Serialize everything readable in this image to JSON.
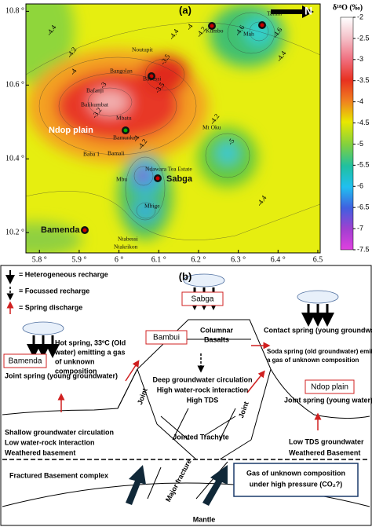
{
  "panel_a": {
    "label": "(a)",
    "north": "N",
    "colorbar_title": "δ¹⁸O (‰)",
    "xlim": [
      5.766,
      6.506
    ],
    "ylim": [
      10.145,
      10.82
    ],
    "x_ticks": [
      {
        "value": 5.8,
        "label": "5.8 °"
      },
      {
        "value": 5.9,
        "label": "5.9 °"
      },
      {
        "value": 6,
        "label": "6 °"
      },
      {
        "value": 6.1,
        "label": "6.1 °"
      },
      {
        "value": 6.2,
        "label": "6.2 °"
      },
      {
        "value": 6.3,
        "label": "6.3 °"
      },
      {
        "value": 6.4,
        "label": "6.4 °"
      },
      {
        "value": 6.5,
        "label": "6.5"
      }
    ],
    "y_ticks": [
      {
        "value": 10.8,
        "label": "10.8 °"
      },
      {
        "value": 10.6,
        "label": "10.6 °"
      },
      {
        "value": 10.4,
        "label": "10.4 °"
      },
      {
        "value": 10.2,
        "label": "10.2 °"
      }
    ],
    "colorbar_ticks": [
      -2,
      -2.5,
      -3,
      -3.5,
      -4,
      -4.5,
      -5,
      -5.5,
      -6,
      -6.5,
      -7,
      -7.5
    ],
    "sites": [
      "Tatum",
      "Mah",
      "Kumbo",
      "Noutupit",
      "Bangolan",
      "Babessi",
      "Bafanji",
      "Balikumbat",
      "Mbatu",
      "Ndop plain",
      "Bamunka",
      "Mt Oku",
      "Baba 1",
      "Bamali",
      "Ndawara Tea Estate",
      "Sabga",
      "Mbu",
      "Mbige",
      "Bamenda",
      "Ntabessi",
      "Ntakrikon"
    ],
    "contour_labels": [
      "-4.4",
      "-4.2",
      "-4",
      "-3.5",
      "-3.5",
      "-3.2",
      "-3",
      "-4",
      "-4.2",
      "-4.4",
      "-4.6",
      "-4.6",
      "-4.4",
      "-4.2",
      "-5",
      "-4",
      "-4.2",
      "-4.4"
    ]
  },
  "panel_b": {
    "label": "(b)",
    "legend": [
      "= Heterogeneous recharge",
      "= Focussed recharge",
      "= Spring discharge"
    ],
    "boxes": [
      "Sabga",
      "Bambui",
      "Bamenda",
      "Ndop plain"
    ],
    "texts": {
      "columnar": [
        "Columnar",
        "Basalts"
      ],
      "contact": [
        "Contact spring (young groundwater)"
      ],
      "soda": [
        "Soda spring (old groundwater) emitting",
        "a gas of unknown composition"
      ],
      "hot": [
        "Hot spring, 33ºC (Old",
        "water) emitting a gas",
        "of          unknown",
        "composition"
      ],
      "joint_bamenda": [
        "Joint spring (young groundwater)"
      ],
      "deep": [
        "Deep groundwater circulation",
        "High water-rock interaction",
        "High TDS"
      ],
      "joint1": [
        "Joint"
      ],
      "joint2": [
        "Joint"
      ],
      "joint_ndop": [
        "Joint spring (young water)"
      ],
      "low_tds": [
        "Low TDS groundwater",
        "Weathered Basement"
      ],
      "shallow": [
        "Shallow groundwater circulation",
        "Low water-rock interaction",
        "Weathered basement"
      ],
      "trachyte": [
        "Jointed Trachyte"
      ],
      "fractured": [
        "Fractured Basement complex"
      ],
      "major": [
        "Major fracture"
      ],
      "gas": [
        "Gas of unknown composition",
        "under high pressure (CO₂?)"
      ],
      "mantle": [
        "Mantle"
      ]
    }
  }
}
